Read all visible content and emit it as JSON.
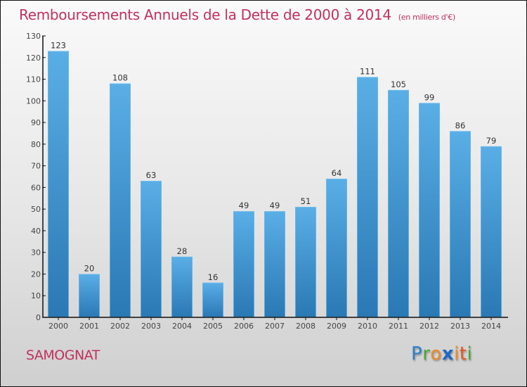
{
  "header": {
    "title": "Remboursements Annuels de la Dette de 2000 à 2014",
    "unit": "(en milliers d'€)"
  },
  "footer": {
    "commune": "SAMOGNAT",
    "brand_letters": [
      {
        "char": "P",
        "color": "#2d7fd0"
      },
      {
        "char": "r",
        "color": "#4aa83a"
      },
      {
        "char": "o",
        "color": "#f08a1c"
      },
      {
        "char": "x",
        "color": "#1f68c4"
      },
      {
        "char": "i",
        "color": "#f08a1c"
      },
      {
        "char": "t",
        "color": "#e8541c"
      },
      {
        "char": "i",
        "color": "#4aa83a"
      }
    ]
  },
  "colors": {
    "title": "#c0315e",
    "bar_top": "#5aaee6",
    "bar_bottom": "#2a78b4",
    "axis": "#111111"
  },
  "chart_data": {
    "type": "bar",
    "title": "Remboursements Annuels de la Dette de 2000 à 2014",
    "subtitle": "(en milliers d'€)",
    "xlabel": "",
    "ylabel": "",
    "categories": [
      "2000",
      "2001",
      "2002",
      "2003",
      "2004",
      "2005",
      "2006",
      "2007",
      "2008",
      "2009",
      "2010",
      "2011",
      "2012",
      "2013",
      "2014"
    ],
    "values": [
      123,
      20,
      108,
      63,
      28,
      16,
      49,
      49,
      51,
      64,
      111,
      105,
      99,
      86,
      79
    ],
    "ylim": [
      0,
      130
    ],
    "yticks": [
      0,
      10,
      20,
      30,
      40,
      50,
      60,
      70,
      80,
      90,
      100,
      110,
      120,
      130
    ],
    "grid": false,
    "legend": "none",
    "data_labels": true
  }
}
